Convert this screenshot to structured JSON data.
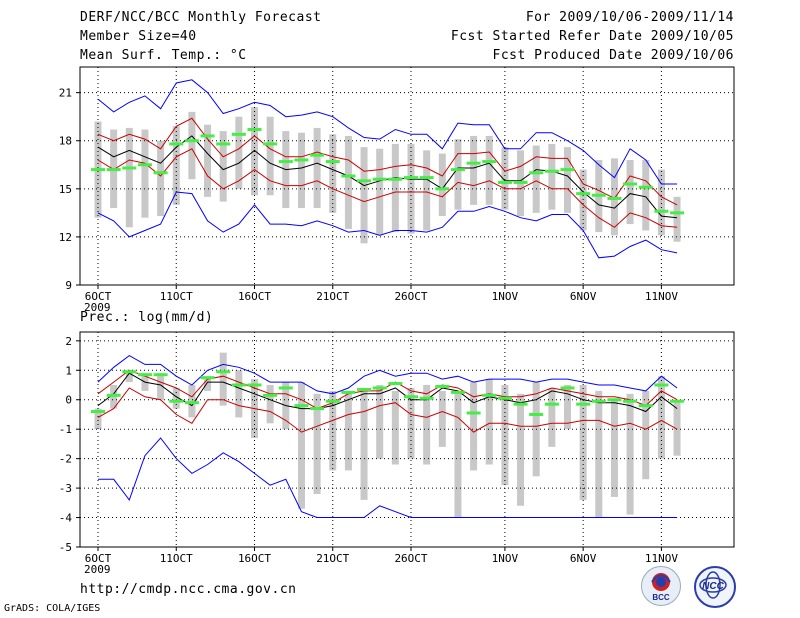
{
  "header": {
    "title": "DERF/NCC/BCC Monthly Forecast",
    "member": "Member Size=40",
    "variable": "Mean Surf. Temp.: °C",
    "period": "For 2009/10/06-2009/11/14",
    "started": "Fcst Started Refer Date 2009/10/05",
    "produced": "Fcst Produced Date 2009/10/06"
  },
  "footer": {
    "url": "http://cmdp.ncc.cma.gov.cn",
    "credit": "GrADS: COLA/IGES",
    "logo_left": "BCC",
    "logo_right": "NCC"
  },
  "colors": {
    "ensemble_max_min": "#0000ff",
    "spread": "#cc0000",
    "mean": "#000000",
    "observed": "#44ee44",
    "bar": "#c8c8c8"
  },
  "chart_data": [
    {
      "type": "line",
      "title": "Mean Surf. Temp.: °C",
      "x_tick_labels": [
        "6OCT",
        "11OCT",
        "16OCT",
        "21OCT",
        "26OCT",
        "1NOV",
        "6NOV",
        "11NOV"
      ],
      "x_tick_days": [
        1,
        6,
        11,
        16,
        21,
        27,
        32,
        37
      ],
      "year_label": "2009",
      "xlim": [
        1,
        40
      ],
      "ylim": [
        9,
        22.6
      ],
      "y_ticks": [
        9,
        12,
        15,
        18,
        21
      ],
      "series": [
        {
          "name": "max",
          "values": [
            20.6,
            19.8,
            20.4,
            20.8,
            20.0,
            21.6,
            21.8,
            21.0,
            19.7,
            20.0,
            20.4,
            20.2,
            19.5,
            19.6,
            19.8,
            19.5,
            18.8,
            18.2,
            18.1,
            18.7,
            18.4,
            18.4,
            17.5,
            19.1,
            19.0,
            19.0,
            17.5,
            17.5,
            18.5,
            18.5,
            18.0,
            17.4,
            16.5,
            15.7,
            17.5,
            16.8,
            15.3,
            15.3
          ]
        },
        {
          "name": "spread_upper",
          "values": [
            18.4,
            18.0,
            18.4,
            18.1,
            17.5,
            18.9,
            19.4,
            18.1,
            17.0,
            17.5,
            18.3,
            17.5,
            17.0,
            17.0,
            17.3,
            17.0,
            16.8,
            16.1,
            16.2,
            16.4,
            16.5,
            16.3,
            15.8,
            17.2,
            17.2,
            17.3,
            16.1,
            16.4,
            17.0,
            16.9,
            16.9,
            15.3,
            14.9,
            14.4,
            15.8,
            15.5,
            14.5,
            14.0
          ]
        },
        {
          "name": "mean",
          "values": [
            17.6,
            17.0,
            17.4,
            17.0,
            16.6,
            17.6,
            18.3,
            17.2,
            16.2,
            16.6,
            17.4,
            16.6,
            16.2,
            16.3,
            16.6,
            16.2,
            15.8,
            15.2,
            15.5,
            15.7,
            15.6,
            15.6,
            15.0,
            16.3,
            16.3,
            16.6,
            15.5,
            15.5,
            16.2,
            16.1,
            15.8,
            14.8,
            14.0,
            13.8,
            14.7,
            14.5,
            13.3,
            13.2
          ]
        },
        {
          "name": "spread_lower",
          "values": [
            16.8,
            16.2,
            16.8,
            16.6,
            15.8,
            17.0,
            17.5,
            15.8,
            15.0,
            15.5,
            16.2,
            15.5,
            15.2,
            15.2,
            15.5,
            15.0,
            14.6,
            14.2,
            14.5,
            14.8,
            14.8,
            14.8,
            14.5,
            15.4,
            15.2,
            15.5,
            15.0,
            15.0,
            15.5,
            15.0,
            15.0,
            14.0,
            13.2,
            12.6,
            13.5,
            13.2,
            12.7,
            12.6
          ]
        },
        {
          "name": "min",
          "values": [
            13.5,
            13.0,
            12.0,
            12.4,
            12.8,
            14.8,
            14.7,
            13.0,
            12.3,
            12.8,
            14.0,
            12.8,
            12.8,
            12.7,
            13.0,
            12.7,
            12.3,
            12.4,
            12.1,
            12.4,
            12.4,
            12.3,
            12.6,
            13.6,
            13.6,
            13.9,
            13.6,
            13.2,
            13.0,
            13.4,
            13.4,
            12.4,
            10.7,
            10.8,
            11.4,
            11.8,
            11.2,
            11.0
          ]
        },
        {
          "name": "observed",
          "values": [
            16.2,
            16.2,
            16.3,
            16.5,
            16.0,
            17.8,
            18.0,
            18.3,
            17.8,
            18.4,
            18.7,
            17.8,
            16.7,
            16.8,
            17.1,
            16.7,
            15.8,
            15.5,
            15.6,
            15.6,
            15.7,
            15.7,
            15.0,
            16.2,
            16.6,
            16.7,
            15.4,
            15.4,
            16.0,
            16.1,
            16.2,
            14.7,
            14.6,
            14.4,
            15.3,
            15.1,
            13.6,
            13.5
          ]
        },
        {
          "name": "bar_top",
          "values": [
            19.2,
            18.7,
            18.8,
            18.7,
            18.0,
            18.9,
            19.8,
            19.0,
            18.6,
            19.5,
            20.1,
            19.5,
            18.6,
            18.5,
            18.8,
            18.4,
            18.3,
            17.6,
            17.5,
            17.8,
            17.8,
            17.4,
            17.2,
            18.1,
            18.3,
            18.3,
            17.6,
            17.4,
            17.7,
            17.8,
            17.6,
            16.2,
            16.8,
            16.9,
            16.8,
            16.8,
            16.2,
            14.5
          ]
        },
        {
          "name": "bar_bottom",
          "values": [
            13.2,
            13.8,
            12.6,
            13.2,
            13.3,
            14.0,
            15.6,
            14.5,
            14.2,
            15.0,
            14.6,
            14.6,
            13.8,
            13.8,
            13.8,
            13.5,
            12.5,
            11.6,
            12.1,
            12.3,
            12.2,
            12.4,
            13.3,
            13.7,
            14.0,
            14.0,
            13.7,
            13.3,
            13.5,
            13.7,
            13.5,
            12.4,
            12.3,
            12.1,
            12.8,
            12.4,
            12.1,
            11.7
          ]
        }
      ]
    },
    {
      "type": "line",
      "title": "Prec.: log(mm/d)",
      "x_tick_labels": [
        "6OCT",
        "11OCT",
        "16OCT",
        "21OCT",
        "26OCT",
        "1NOV",
        "6NOV",
        "11NOV"
      ],
      "x_tick_days": [
        1,
        6,
        11,
        16,
        21,
        27,
        32,
        37
      ],
      "year_label": "2009",
      "xlim": [
        1,
        40
      ],
      "ylim": [
        -5,
        2.3
      ],
      "y_ticks": [
        -5,
        -4,
        -3,
        -2,
        -1,
        0,
        1,
        2
      ],
      "series": [
        {
          "name": "max",
          "values": [
            0.6,
            1.1,
            1.5,
            1.2,
            1.2,
            0.8,
            0.5,
            1.0,
            1.2,
            1.1,
            0.9,
            0.6,
            0.6,
            0.6,
            0.3,
            0.2,
            0.4,
            0.8,
            1.0,
            0.8,
            0.9,
            0.9,
            0.7,
            0.8,
            0.6,
            0.7,
            0.7,
            0.7,
            0.6,
            0.7,
            0.7,
            0.6,
            0.5,
            0.5,
            0.4,
            0.3,
            0.8,
            0.4
          ]
        },
        {
          "name": "spread_upper",
          "values": [
            0.2,
            0.6,
            1.0,
            0.8,
            0.6,
            0.4,
            0.1,
            0.7,
            0.8,
            0.6,
            0.4,
            0.2,
            0.2,
            0.0,
            -0.3,
            -0.1,
            0.2,
            0.3,
            0.3,
            0.6,
            0.3,
            0.2,
            0.5,
            0.4,
            0.1,
            0.2,
            0.1,
            0.1,
            0.2,
            0.4,
            0.3,
            0.2,
            0.1,
            0.1,
            0.0,
            -0.2,
            0.3,
            0.0
          ]
        },
        {
          "name": "mean",
          "values": [
            -0.2,
            0.2,
            0.9,
            0.6,
            0.5,
            0.1,
            -0.2,
            0.6,
            0.6,
            0.4,
            0.2,
            0.0,
            -0.2,
            -0.3,
            -0.3,
            -0.2,
            0.0,
            0.2,
            0.2,
            0.4,
            0.0,
            0.0,
            0.4,
            0.3,
            -0.1,
            0.1,
            0.0,
            -0.1,
            0.0,
            0.3,
            0.2,
            0.0,
            -0.1,
            -0.1,
            -0.2,
            -0.4,
            0.1,
            -0.3
          ]
        },
        {
          "name": "spread_lower",
          "values": [
            -0.6,
            -0.3,
            0.4,
            0.1,
            0.0,
            -0.5,
            -0.8,
            0.0,
            0.0,
            -0.2,
            -0.3,
            -0.4,
            -0.7,
            -1.1,
            -0.9,
            -0.7,
            -0.5,
            -0.4,
            -0.2,
            -0.1,
            -0.5,
            -0.6,
            -0.4,
            -0.6,
            -1.1,
            -0.8,
            -0.8,
            -0.9,
            -0.9,
            -0.8,
            -0.8,
            -0.7,
            -0.7,
            -0.9,
            -0.8,
            -1.0,
            -0.7,
            -1.0
          ]
        },
        {
          "name": "min",
          "values": [
            -2.7,
            -2.7,
            -3.4,
            -1.9,
            -1.3,
            -2.0,
            -2.5,
            -2.2,
            -1.8,
            -2.1,
            -2.5,
            -2.9,
            -2.7,
            -3.8,
            -4.0,
            -4.0,
            -4.0,
            -4.0,
            -3.6,
            -3.8,
            -4.0,
            -4.0,
            -4.0,
            -4.0,
            -4.0,
            -4.0,
            -4.0,
            -4.0,
            -4.0,
            -4.0,
            -4.0,
            -4.0,
            -4.0,
            -4.0,
            -4.0,
            -4.0,
            -4.0,
            -4.0
          ]
        },
        {
          "name": "observed",
          "values": [
            -0.4,
            0.15,
            0.95,
            0.85,
            0.85,
            -0.05,
            -0.1,
            0.75,
            0.95,
            0.5,
            0.5,
            0.15,
            0.4,
            -0.2,
            -0.3,
            -0.05,
            0.25,
            0.35,
            0.4,
            0.55,
            0.1,
            0.05,
            0.45,
            0.25,
            -0.45,
            0.15,
            0.05,
            -0.15,
            -0.5,
            -0.15,
            0.4,
            -0.15,
            -0.05,
            0.0,
            -0.05,
            -0.2,
            0.5,
            -0.05
          ]
        },
        {
          "name": "bar_top",
          "values": [
            -0.3,
            0.5,
            1.0,
            0.9,
            0.9,
            0.4,
            0.5,
            0.7,
            1.6,
            1.0,
            0.7,
            0.5,
            0.6,
            0.6,
            0.2,
            0.3,
            0.3,
            0.4,
            0.5,
            0.3,
            0.4,
            0.5,
            0.3,
            0.3,
            0.6,
            0.7,
            0.5,
            0.2,
            0.6,
            0.4,
            0.5,
            0.5,
            0.3,
            0.0,
            0.2,
            0.3,
            0.8,
            0.0
          ]
        },
        {
          "name": "bar_bottom",
          "values": [
            -1.0,
            -0.3,
            0.6,
            0.3,
            0.0,
            -0.3,
            -0.6,
            0.3,
            -0.2,
            -0.6,
            -1.3,
            -0.8,
            -1.0,
            -3.7,
            -3.2,
            -2.4,
            -2.4,
            -3.4,
            -2.0,
            -2.2,
            -2.0,
            -2.2,
            -1.6,
            -4.0,
            -2.4,
            -2.2,
            -2.9,
            -3.6,
            -2.6,
            -1.6,
            -1.0,
            -3.4,
            -4.0,
            -3.3,
            -3.9,
            -2.7,
            -2.0,
            -1.9
          ]
        }
      ]
    }
  ]
}
